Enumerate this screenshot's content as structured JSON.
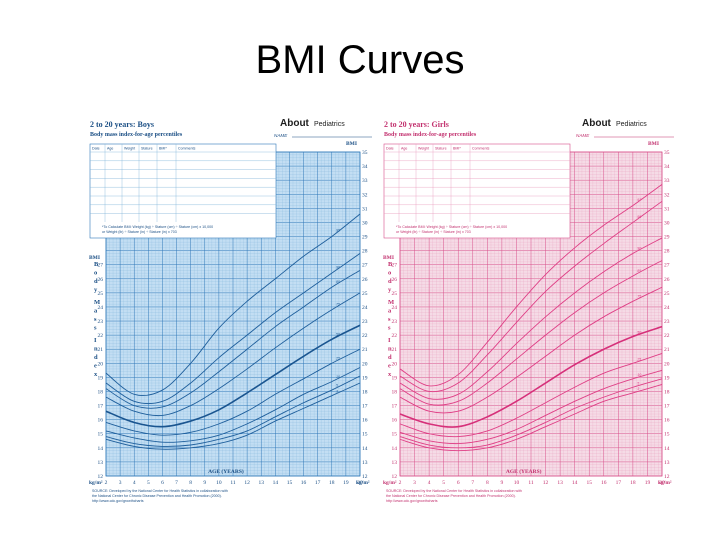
{
  "slide": {
    "title": "BMI Curves"
  },
  "charts": [
    {
      "key": "boys",
      "header": "2 to 20 years: Boys",
      "subheader": "Body mass index-for-age percentiles",
      "logo_main": "About",
      "logo_sub": "Pediatrics",
      "name_label": "NAME",
      "colors": {
        "fill": "#c3def3",
        "grid": "#7eb2d8",
        "major": "#2f78b8",
        "curve": "#1f5f9c",
        "median": "#1a5590",
        "text": "#1b4f85"
      },
      "columns": [
        "Date",
        "Age",
        "Weight",
        "Stature",
        "BMI*",
        "Comments"
      ],
      "formula_lines": [
        "*To Calculate BMI: Weight (kg) ÷ Stature (cm) ÷ Stature (cm) x 10,000",
        "or Weight (lb) ÷ Stature (in) ÷ Stature (in) x 703"
      ],
      "vertical_label": [
        "B",
        "o",
        "d",
        "y",
        "M",
        "a",
        "s",
        "s",
        "I",
        "n",
        "d",
        "e",
        "x"
      ],
      "source_lines": [
        "SOURCE: Developed by the National Center for Health Statistics in collaboration with",
        "the National Center for Chronic Disease Prevention and Health Promotion (2000).",
        "http://www.cdc.gov/growthcharts"
      ]
    },
    {
      "key": "girls",
      "header": "2 to 20 years: Girls",
      "subheader": "Body mass index-for-age percentiles",
      "logo_main": "About",
      "logo_sub": "Pediatrics",
      "name_label": "NAME",
      "colors": {
        "fill": "#f5dbe6",
        "grid": "#e89bbb",
        "major": "#d84f8a",
        "curve": "#df3f86",
        "median": "#d6307a",
        "text": "#c2306e"
      },
      "columns": [
        "Date",
        "Age",
        "Weight",
        "Stature",
        "BMI*",
        "Comments"
      ],
      "formula_lines": [
        "*To Calculate BMI: Weight (kg) ÷ Stature (cm) ÷ Stature (cm) x 10,000",
        "or Weight (lb) ÷ Stature (in) ÷ Stature (in) x 703"
      ],
      "vertical_label": [
        "B",
        "o",
        "d",
        "y",
        "M",
        "a",
        "s",
        "s",
        "I",
        "n",
        "d",
        "e",
        "x"
      ],
      "source_lines": [
        "SOURCE: Developed by the National Center for Health Statistics in collaboration with",
        "the National Center for Chronic Disease Prevention and Health Promotion (2000).",
        "http://www.cdc.gov/growthcharts"
      ]
    }
  ],
  "chart_data": [
    {
      "type": "line",
      "title": "2 to 20 years: Boys",
      "xlabel": "AGE (YEARS)",
      "ylabel": "BMI",
      "xlim": [
        2,
        20
      ],
      "ylim": [
        12,
        35
      ],
      "grid": true,
      "unit_label": "kg/m²",
      "y_ticks_left": [
        12,
        13,
        14,
        15,
        16,
        17,
        18,
        19,
        20,
        21,
        22,
        23,
        24,
        25,
        26,
        27
      ],
      "y_ticks_right": [
        12,
        13,
        14,
        15,
        16,
        17,
        18,
        19,
        20,
        21,
        22,
        23,
        24,
        25,
        26,
        27,
        28,
        29,
        30,
        31,
        32,
        33,
        34,
        35
      ],
      "x_ticks": [
        2,
        3,
        4,
        5,
        6,
        7,
        8,
        9,
        10,
        11,
        12,
        13,
        14,
        15,
        16,
        17,
        18,
        19,
        20
      ],
      "x": [
        2,
        4,
        6,
        8,
        10,
        12,
        14,
        16,
        18,
        20
      ],
      "series": [
        {
          "name": "95",
          "values": [
            19.3,
            17.8,
            18.1,
            20.0,
            22.5,
            24.4,
            26.0,
            27.6,
            29.0,
            30.6
          ]
        },
        {
          "name": "90",
          "values": [
            18.6,
            17.3,
            17.3,
            18.6,
            20.4,
            22.0,
            23.6,
            25.0,
            26.4,
            27.8
          ]
        },
        {
          "name": "85",
          "values": [
            18.2,
            17.0,
            16.9,
            17.9,
            19.4,
            21.0,
            22.6,
            24.0,
            25.4,
            26.6
          ]
        },
        {
          "name": "75",
          "values": [
            17.6,
            16.6,
            16.3,
            17.0,
            18.2,
            19.6,
            21.1,
            22.5,
            23.8,
            25.0
          ]
        },
        {
          "name": "50",
          "values": [
            16.6,
            15.8,
            15.5,
            15.9,
            16.7,
            17.9,
            19.2,
            20.5,
            21.7,
            22.7
          ]
        },
        {
          "name": "25",
          "values": [
            15.8,
            15.2,
            14.9,
            15.1,
            15.7,
            16.6,
            17.8,
            18.9,
            20.0,
            21.0
          ]
        },
        {
          "name": "10",
          "values": [
            15.2,
            14.7,
            14.4,
            14.5,
            14.9,
            15.7,
            16.7,
            17.8,
            18.7,
            19.7
          ]
        },
        {
          "name": "5",
          "values": [
            14.8,
            14.3,
            14.1,
            14.2,
            14.6,
            15.2,
            16.2,
            17.2,
            18.1,
            19.1
          ]
        },
        {
          "name": "3",
          "values": [
            14.6,
            14.1,
            13.9,
            14.0,
            14.3,
            14.9,
            15.9,
            16.8,
            17.7,
            18.6
          ]
        }
      ]
    },
    {
      "type": "line",
      "title": "2 to 20 years: Girls",
      "xlabel": "AGE (YEARS)",
      "ylabel": "BMI",
      "xlim": [
        2,
        20
      ],
      "ylim": [
        12,
        35
      ],
      "grid": true,
      "unit_label": "kg/m²",
      "y_ticks_left": [
        12,
        13,
        14,
        15,
        16,
        17,
        18,
        19,
        20,
        21,
        22,
        23,
        24,
        25,
        26,
        27
      ],
      "y_ticks_right": [
        12,
        13,
        14,
        15,
        16,
        17,
        18,
        19,
        20,
        21,
        22,
        23,
        24,
        25,
        26,
        27,
        28,
        29,
        30,
        31,
        32,
        33,
        34,
        35
      ],
      "x_ticks": [
        2,
        3,
        4,
        5,
        6,
        7,
        8,
        9,
        10,
        11,
        12,
        13,
        14,
        15,
        16,
        17,
        18,
        19,
        20
      ],
      "x": [
        2,
        4,
        6,
        8,
        10,
        12,
        14,
        16,
        18,
        20
      ],
      "series": [
        {
          "name": "97",
          "values": [
            19.6,
            18.4,
            19.2,
            21.5,
            24.0,
            26.3,
            28.2,
            29.8,
            31.2,
            32.7
          ]
        },
        {
          "name": "95",
          "values": [
            19.1,
            18.0,
            18.6,
            20.6,
            22.9,
            25.1,
            26.9,
            28.5,
            30.0,
            31.5
          ]
        },
        {
          "name": "90",
          "values": [
            18.6,
            17.5,
            17.8,
            19.4,
            21.4,
            23.3,
            25.0,
            26.5,
            27.8,
            28.9
          ]
        },
        {
          "name": "85",
          "values": [
            18.2,
            17.1,
            17.3,
            18.6,
            20.3,
            22.0,
            23.6,
            25.0,
            26.2,
            27.3
          ]
        },
        {
          "name": "75",
          "values": [
            17.6,
            16.6,
            16.6,
            17.6,
            19.0,
            20.5,
            22.0,
            23.3,
            24.4,
            25.4
          ]
        },
        {
          "name": "50",
          "values": [
            16.4,
            15.7,
            15.5,
            16.2,
            17.3,
            18.6,
            19.9,
            21.0,
            21.9,
            22.6
          ]
        },
        {
          "name": "25",
          "values": [
            15.7,
            15.0,
            14.8,
            15.2,
            16.1,
            17.2,
            18.3,
            19.3,
            20.0,
            20.7
          ]
        },
        {
          "name": "10",
          "values": [
            15.1,
            14.5,
            14.3,
            14.6,
            15.3,
            16.3,
            17.3,
            18.2,
            18.9,
            19.5
          ]
        },
        {
          "name": "5",
          "values": [
            14.8,
            14.2,
            14.0,
            14.2,
            14.9,
            15.8,
            16.8,
            17.6,
            18.3,
            18.9
          ]
        },
        {
          "name": "3",
          "values": [
            14.6,
            14.0,
            13.8,
            14.0,
            14.6,
            15.5,
            16.4,
            17.3,
            17.9,
            18.5
          ]
        }
      ]
    }
  ]
}
